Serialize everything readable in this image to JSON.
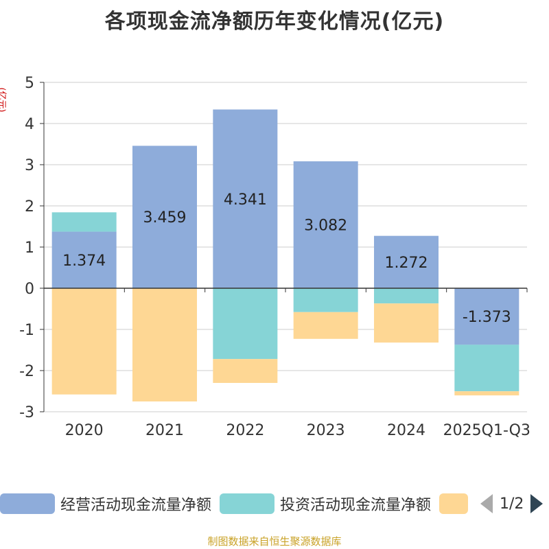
{
  "chart_data": {
    "type": "bar",
    "stacked": true,
    "title": "各项现金流净额历年变化情况(亿元)",
    "ylabel": "(亿元)",
    "ylim": [
      -3,
      5
    ],
    "yticks": [
      5,
      4,
      3,
      2,
      1,
      0,
      -1,
      -2,
      -3
    ],
    "ytick_labels": [
      "5",
      "4",
      "3",
      "2",
      "1",
      "0",
      "-1",
      "-2",
      "-3"
    ],
    "grid": true,
    "legend_position": "bottom",
    "categories": [
      "2020",
      "2021",
      "2022",
      "2023",
      "2024",
      "2025Q1-Q3"
    ],
    "series": [
      {
        "name": "经营活动现金流量净额",
        "color": "#8eacda",
        "values": [
          1.374,
          3.459,
          4.341,
          3.082,
          1.272,
          -1.373
        ],
        "labels": [
          "1.374",
          "3.459",
          "4.341",
          "3.082",
          "1.272",
          "-1.373"
        ]
      },
      {
        "name": "投资活动现金流量净额",
        "color": "#86d4d6",
        "values": [
          0.47,
          0.0,
          -1.72,
          -0.58,
          -0.37,
          -1.13
        ]
      },
      {
        "name": "",
        "color": "#fed794",
        "values": [
          -2.58,
          -2.75,
          -0.58,
          -0.65,
          -0.95,
          -0.1
        ]
      }
    ]
  },
  "legend": {
    "page_indicator": "1/2"
  },
  "source": "制图数据来自恒生聚源数据库"
}
